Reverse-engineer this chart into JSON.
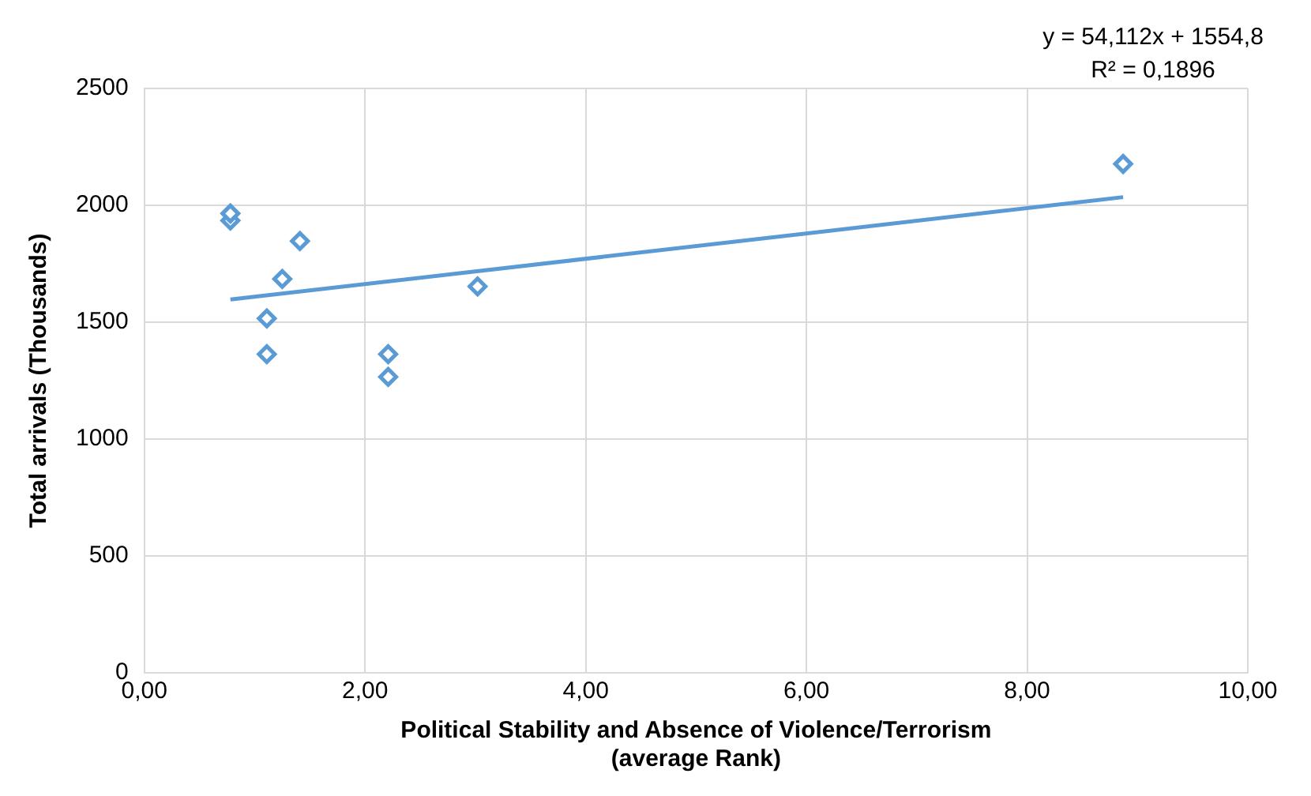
{
  "chart_data": {
    "type": "scatter",
    "xlabel": "Political Stability and Absence of Violence/Terrorism\n(average Rank)",
    "ylabel": "Total arrivals (Thousands)",
    "series": [
      {
        "color": "#5b9bd5",
        "x": [
          0.78,
          0.78,
          1.41,
          1.25,
          1.11,
          1.11,
          2.21,
          2.21,
          3.02,
          8.87
        ],
        "values": [
          1935,
          1965,
          1847,
          1685,
          1516,
          1363,
          1363,
          1266,
          1653,
          2177
        ],
        "marker": "diamond"
      },
      {
        "type": "line",
        "color": "#5b9bd5",
        "x": [
          0.78,
          8.87
        ],
        "values": [
          1597,
          2035
        ],
        "marker": "none"
      }
    ],
    "xlim": [
      0,
      10
    ],
    "xticks": [
      {
        "value": 0,
        "label": "0,00"
      },
      {
        "value": 2,
        "label": "2,00"
      },
      {
        "value": 4,
        "label": "4,00"
      },
      {
        "value": 6,
        "label": "6,00"
      },
      {
        "value": 8,
        "label": "8,00"
      },
      {
        "value": 10,
        "label": "10,00"
      }
    ],
    "ylim": [
      0,
      2500
    ],
    "yticks": [
      0,
      500,
      1000,
      1500,
      2000,
      2500
    ],
    "grid": true,
    "legend": false,
    "annotations": [
      "y = 54,112x + 1554,8",
      "R² = 0,1896"
    ]
  }
}
